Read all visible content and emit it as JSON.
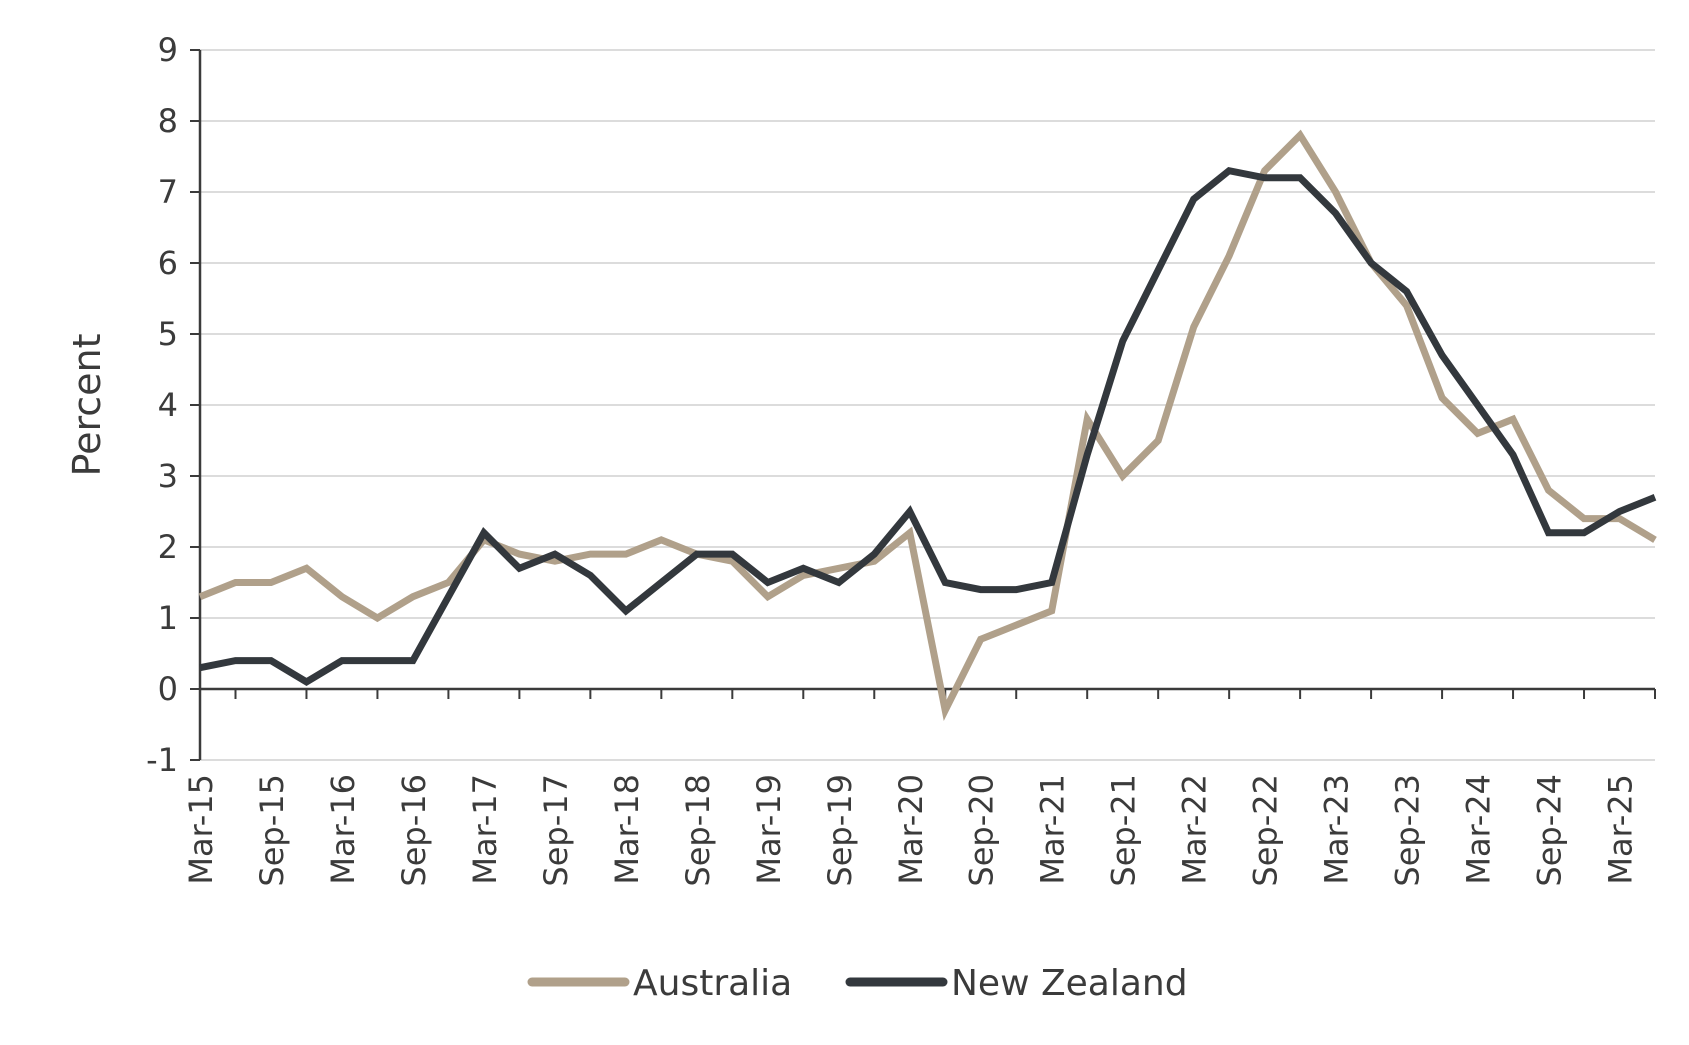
{
  "chart_data": {
    "type": "line",
    "title": "",
    "xlabel": "",
    "ylabel": "Percent",
    "ylim": [
      -1,
      9
    ],
    "yticks": [
      -1,
      0,
      1,
      2,
      3,
      4,
      5,
      6,
      7,
      8,
      9
    ],
    "grid": true,
    "legend_position": "bottom-center",
    "x": [
      "Mar-15",
      "Jun-15",
      "Sep-15",
      "Dec-15",
      "Mar-16",
      "Jun-16",
      "Sep-16",
      "Dec-16",
      "Mar-17",
      "Jun-17",
      "Sep-17",
      "Dec-17",
      "Mar-18",
      "Jun-18",
      "Sep-18",
      "Dec-18",
      "Mar-19",
      "Jun-19",
      "Sep-19",
      "Dec-19",
      "Mar-20",
      "Jun-20",
      "Sep-20",
      "Dec-20",
      "Mar-21",
      "Jun-21",
      "Sep-21",
      "Dec-21",
      "Mar-22",
      "Jun-22",
      "Sep-22",
      "Dec-22",
      "Mar-23",
      "Jun-23",
      "Sep-23",
      "Dec-23",
      "Mar-24",
      "Jun-24",
      "Sep-24",
      "Dec-24",
      "Mar-25",
      "Jun-25"
    ],
    "x_tick_labels": [
      "Mar-15",
      "Sep-15",
      "Mar-16",
      "Sep-16",
      "Mar-17",
      "Sep-17",
      "Mar-18",
      "Sep-18",
      "Mar-19",
      "Sep-19",
      "Mar-20",
      "Sep-20",
      "Mar-21",
      "Sep-21",
      "Mar-22",
      "Sep-22",
      "Mar-23",
      "Sep-23",
      "Mar-24",
      "Sep-24",
      "Mar-25"
    ],
    "series": [
      {
        "name": "Australia",
        "color": "#b0a08a",
        "values": [
          1.3,
          1.5,
          1.5,
          1.7,
          1.3,
          1.0,
          1.3,
          1.5,
          2.1,
          1.9,
          1.8,
          1.9,
          1.9,
          2.1,
          1.9,
          1.8,
          1.3,
          1.6,
          1.7,
          1.8,
          2.2,
          -0.3,
          0.7,
          0.9,
          1.1,
          3.8,
          3.0,
          3.5,
          5.1,
          6.1,
          7.3,
          7.8,
          7.0,
          6.0,
          5.4,
          4.1,
          3.6,
          3.8,
          2.8,
          2.4,
          2.4,
          2.1
        ]
      },
      {
        "name": "New Zealand",
        "color": "#33383d",
        "values": [
          0.3,
          0.4,
          0.4,
          0.1,
          0.4,
          0.4,
          0.4,
          1.3,
          2.2,
          1.7,
          1.9,
          1.6,
          1.1,
          1.5,
          1.9,
          1.9,
          1.5,
          1.7,
          1.5,
          1.9,
          2.5,
          1.5,
          1.4,
          1.4,
          1.5,
          3.3,
          4.9,
          5.9,
          6.9,
          7.3,
          7.2,
          7.2,
          6.7,
          6.0,
          5.6,
          4.7,
          4.0,
          3.3,
          2.2,
          2.2,
          2.5,
          2.7
        ]
      }
    ]
  }
}
